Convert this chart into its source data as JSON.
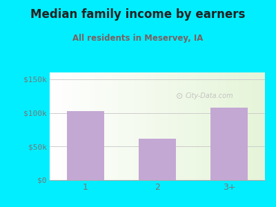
{
  "title": "Median family income by earners",
  "subtitle": "All residents in Meservey, IA",
  "categories": [
    "1",
    "2",
    "3+"
  ],
  "values": [
    103000,
    62000,
    108000
  ],
  "bar_color": "#c4a8d4",
  "title_color": "#222222",
  "subtitle_color": "#7a6060",
  "outer_bg": "#00eeff",
  "yticks": [
    0,
    50000,
    100000,
    150000
  ],
  "ytick_labels": [
    "$0",
    "$50k",
    "$100k",
    "$150k"
  ],
  "ylim": [
    0,
    160000
  ],
  "watermark": "City-Data.com",
  "grid_color": "#cccccc",
  "tick_color": "#777777"
}
